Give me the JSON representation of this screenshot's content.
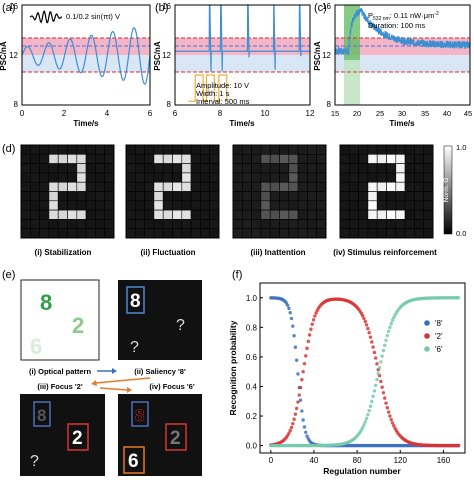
{
  "panel_labels": {
    "a": "(a)",
    "b": "(b)",
    "c": "(c)",
    "d": "(d)",
    "e": "(e)",
    "f": "(f)"
  },
  "colors": {
    "accent_pink": "#f3b6c9",
    "accent_blue": "#c9dcf3",
    "line_blue": "#3d8fd1",
    "dash_red": "#d62c2c",
    "dash_blue": "#5a6bd8",
    "green_band": "#5cb85c",
    "s8": "#3b6fc0",
    "s2": "#d93434",
    "s6": "#74c9ad"
  },
  "panel_a": {
    "annotation": "0.1/0.2 sin(πt) V",
    "xlabel": "Time/s",
    "ylabel": "PSC/nA"
  },
  "panel_b": {
    "xlabel": "Time/s",
    "ylabel": "PSC/nA",
    "amp": "Amplitude: 10 V",
    "width": "Width: 1 s",
    "interval": "Interval: 500 ms"
  },
  "panel_c": {
    "xlabel": "Time/s",
    "ylabel": "PSC/nA",
    "power_pre": "P",
    "power_sub": "532 nm",
    "power_post": ": 0.11 nW·μm",
    "power_sup": "-2",
    "duration": "Duration: 100 ms"
  },
  "panel_d": {
    "captions": [
      "(i) Stabilization",
      "(ii) Fluctuation",
      "(iii) Inattention",
      "(iv) Stimulus reinforcement"
    ],
    "colorbar_top": "1.0",
    "colorbar_bottom": "0.0",
    "colorbar_label": "Norm. G"
  },
  "panel_e": {
    "nodes": [
      "(i) Optical pattern",
      "(ii) Saliency '8'",
      "(iii) Focus '2'",
      "(iv) Focus '6'"
    ],
    "digits": [
      "8",
      "2",
      "6",
      "?"
    ]
  },
  "chart_data": [
    {
      "type": "line",
      "panel": "a",
      "xlabel": "Time/s",
      "ylabel": "PSC/nA",
      "xlim": [
        0,
        6
      ],
      "ylim": [
        8,
        16
      ],
      "xticks": [
        0,
        2,
        4,
        6
      ],
      "yticks": [
        8,
        12,
        16
      ],
      "bands": {
        "pink": [
          13.0,
          14.0
        ],
        "blue": [
          10.0,
          13.0
        ]
      },
      "dashes": {
        "red": [
          14.0,
          10.0
        ],
        "blue": [
          13.9
        ]
      },
      "note": "oscillating PSC around 12 nA with amplitude growing to ~±2 nA"
    },
    {
      "type": "line",
      "panel": "b",
      "xlabel": "Time/s",
      "ylabel": "PSC/nA",
      "xlim": [
        6,
        12
      ],
      "ylim": [
        8,
        16
      ],
      "xticks": [
        6,
        8,
        10,
        12
      ],
      "yticks": [
        8,
        12,
        16
      ],
      "bands": {
        "pink": [
          13.0,
          14.0
        ],
        "blue": [
          10.0,
          13.0
        ]
      },
      "pulse_peaks_nA": [
        16,
        16,
        16,
        16,
        16
      ],
      "pulse_dips_nA": [
        10.5,
        10.8,
        11.0,
        11.1,
        11.2
      ]
    },
    {
      "type": "line",
      "panel": "c",
      "xlabel": "Time/s",
      "ylabel": "PSC/nA",
      "xlim": [
        15,
        45
      ],
      "ylim": [
        8,
        16
      ],
      "xticks": [
        15,
        20,
        25,
        30,
        35,
        40,
        45
      ],
      "yticks": [
        8,
        12,
        16
      ],
      "bands": {
        "pink": [
          13.0,
          14.0
        ],
        "blue": [
          10.0,
          13.0
        ]
      },
      "stimulus_window_s": [
        18,
        21
      ],
      "peak_nA": 15.5,
      "relax_to_nA": 12.8
    },
    {
      "type": "heatmap",
      "panel": "d",
      "grid_size": 10,
      "colorbar_range": [
        0.0,
        1.0
      ],
      "pattern": "digit 2",
      "pattern_level": [
        0.88,
        0.9,
        0.35,
        0.98
      ],
      "background_level": [
        0.08,
        0.08,
        0.1,
        0.08
      ]
    },
    {
      "type": "scatter",
      "panel": "f",
      "xlabel": "Regulation number",
      "ylabel": "Recognition probability",
      "xlim": [
        -10,
        180
      ],
      "ylim": [
        -0.05,
        1.1
      ],
      "xticks": [
        0,
        40,
        80,
        120,
        160
      ],
      "yticks": [
        0.0,
        0.2,
        0.4,
        0.6,
        0.8,
        1.0
      ],
      "legend_position": "right",
      "series": [
        {
          "name": "'8'",
          "color": "#3b6fc0",
          "model": "high to low",
          "x_transition": 25
        },
        {
          "name": "'2'",
          "color": "#d93434",
          "model": "rise then fall",
          "x_rise": 30,
          "x_fall": 100
        },
        {
          "name": "'6'",
          "color": "#74c9ad",
          "model": "low to high",
          "x_transition": 100
        }
      ]
    }
  ]
}
